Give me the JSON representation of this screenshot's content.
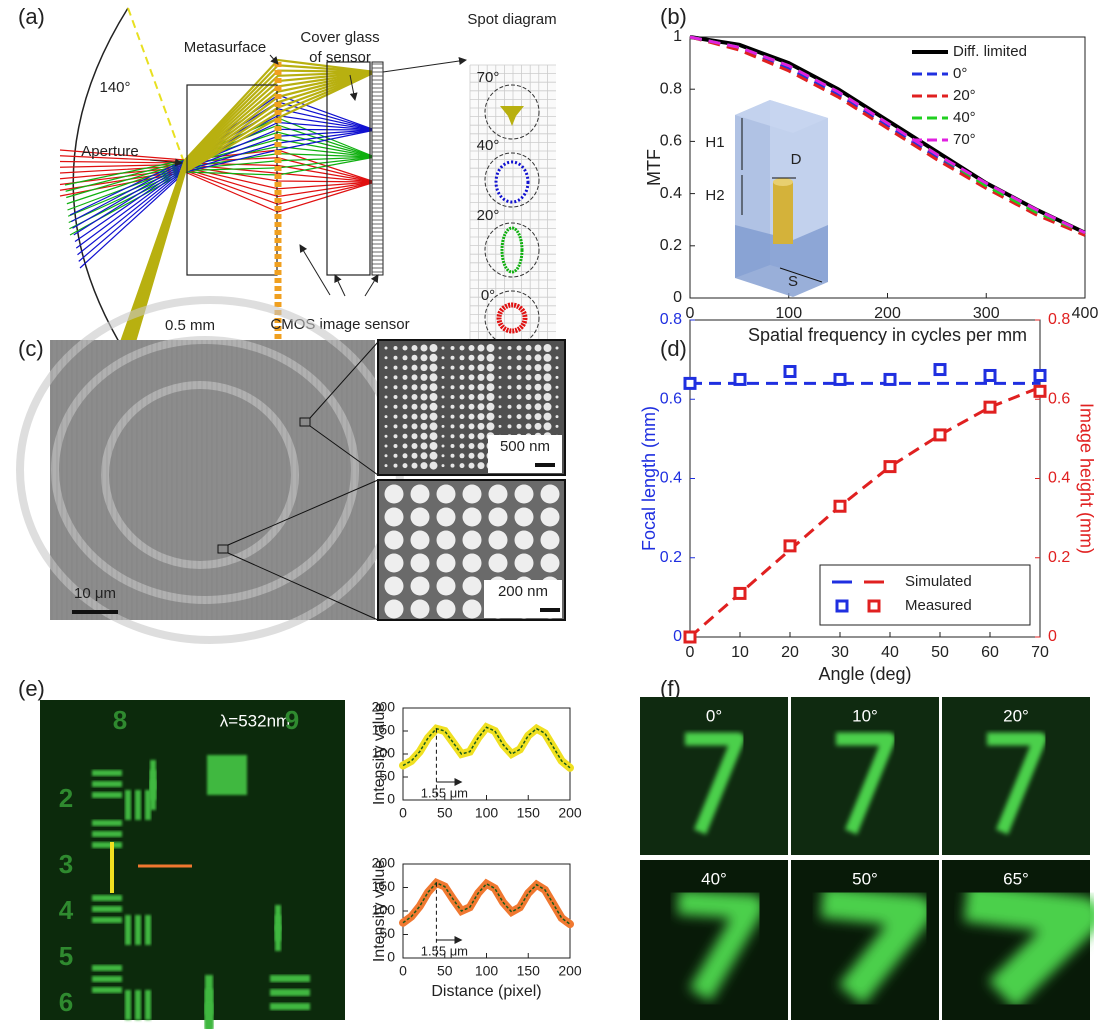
{
  "panels": [
    "(a)",
    "(b)",
    "(c)",
    "(d)",
    "(e)",
    "(f)"
  ],
  "panel_a": {
    "spot_title": "Spot diagram",
    "metasurface": "Metasurface",
    "cover_glass": [
      "Cover glass",
      "of sensor"
    ],
    "angle": "140°",
    "aperture": "Aperture",
    "spot_angles": [
      "70°",
      "40°",
      "20°",
      "0°"
    ],
    "scale_bar": "0.5 mm",
    "sensor": "CMOS image sensor"
  },
  "panel_c": {
    "scale_bars": [
      "10 μm",
      "500 nm",
      "200 nm"
    ]
  },
  "panel_e": {
    "wavelength": "λ=532nm",
    "target_digits": [
      "8",
      "9",
      "2",
      "3",
      "4",
      "5",
      "6"
    ]
  },
  "panel_f": {
    "angles": [
      "0°",
      "10°",
      "20°",
      "40°",
      "50°",
      "65°"
    ]
  },
  "chart_data": [
    {
      "type": "line",
      "xlabel": "Spatial frequency in cycles per mm",
      "ylabel": "MTF",
      "x": [
        0,
        50,
        100,
        150,
        200,
        250,
        300,
        350,
        400
      ],
      "series": [
        {
          "name": "Diff. limited",
          "color": "#000000",
          "style": "solid",
          "values": [
            1,
            0.97,
            0.9,
            0.8,
            0.68,
            0.56,
            0.44,
            0.34,
            0.25
          ]
        },
        {
          "name": "0°",
          "color": "#2030e0",
          "style": "dashed",
          "values": [
            1,
            0.96,
            0.88,
            0.78,
            0.66,
            0.54,
            0.43,
            0.33,
            0.25
          ]
        },
        {
          "name": "20°",
          "color": "#e02020",
          "style": "dashed",
          "values": [
            1,
            0.95,
            0.87,
            0.77,
            0.65,
            0.53,
            0.42,
            0.32,
            0.24
          ]
        },
        {
          "name": "40°",
          "color": "#20d020",
          "style": "dashed",
          "values": [
            1,
            0.96,
            0.89,
            0.79,
            0.67,
            0.55,
            0.43,
            0.33,
            0.25
          ]
        },
        {
          "name": "70°",
          "color": "#e020e0",
          "style": "dashed",
          "values": [
            1,
            0.96,
            0.89,
            0.79,
            0.67,
            0.55,
            0.44,
            0.34,
            0.25
          ]
        }
      ],
      "xlim": [
        0,
        400
      ],
      "ylim": [
        0,
        1
      ],
      "xticks": [
        0,
        100,
        200,
        300,
        400
      ],
      "yticks": [
        0,
        0.2,
        0.4,
        0.6,
        0.8,
        1
      ],
      "legend": "upper right",
      "inset_labels": [
        "H1",
        "H2",
        "D",
        "S"
      ]
    },
    {
      "type": "line",
      "xlabel": "Angle (deg)",
      "ylabel": "Focal length (mm)",
      "y2label": "Image height (mm)",
      "x": [
        0,
        10,
        20,
        30,
        40,
        50,
        60,
        70
      ],
      "series": [
        {
          "name": "Simulated",
          "color": "#1f2fe0",
          "style": "dashed",
          "axis": "y",
          "values": [
            0.64,
            0.64,
            0.64,
            0.64,
            0.64,
            0.64,
            0.64,
            0.64
          ]
        },
        {
          "name": "Measured",
          "color": "#1f2fe0",
          "marker": "square",
          "axis": "y",
          "values": [
            0.64,
            0.65,
            0.67,
            0.65,
            0.65,
            0.675,
            0.66,
            0.66
          ]
        },
        {
          "color": "#e02020",
          "style": "dashed",
          "axis": "y2",
          "values": [
            0,
            0.11,
            0.22,
            0.33,
            0.43,
            0.51,
            0.58,
            0.63
          ]
        },
        {
          "color": "#e02020",
          "marker": "square",
          "axis": "y2",
          "values": [
            0,
            0.11,
            0.23,
            0.33,
            0.43,
            0.51,
            0.58,
            0.62
          ]
        }
      ],
      "xlim": [
        0,
        70
      ],
      "ylim": [
        0,
        0.8
      ],
      "y2lim": [
        0,
        0.8
      ],
      "xticks": [
        0,
        10,
        20,
        30,
        40,
        50,
        60,
        70
      ],
      "yticks": [
        0,
        0.2,
        0.4,
        0.6,
        0.8
      ],
      "y2ticks": [
        0,
        0.2,
        0.4,
        0.6,
        0.8
      ],
      "legend": "lower right"
    },
    {
      "type": "line",
      "ylabel": "Intensity value",
      "annotation": "1.55 μm",
      "color": "#f0e020",
      "fit_color": "#1a5a1a",
      "x": [
        0,
        10,
        20,
        30,
        40,
        50,
        60,
        70,
        80,
        90,
        100,
        110,
        120,
        130,
        140,
        150,
        160,
        170,
        180,
        190,
        200
      ],
      "values": [
        75,
        85,
        105,
        135,
        155,
        150,
        125,
        100,
        105,
        135,
        158,
        150,
        120,
        100,
        110,
        140,
        155,
        145,
        115,
        85,
        70
      ],
      "xlim": [
        0,
        200
      ],
      "ylim": [
        0,
        200
      ],
      "xticks": [
        0,
        50,
        100,
        150,
        200
      ],
      "yticks": [
        0,
        50,
        100,
        150,
        200
      ]
    },
    {
      "type": "line",
      "ylabel": "Intensity value",
      "xlabel": "Distance (pixel)",
      "annotation": "1.55 μm",
      "color": "#f07830",
      "fit_color": "#1a5a1a",
      "x": [
        0,
        10,
        20,
        30,
        40,
        50,
        60,
        70,
        80,
        90,
        100,
        110,
        120,
        130,
        140,
        150,
        160,
        170,
        180,
        190,
        200
      ],
      "values": [
        75,
        88,
        110,
        140,
        160,
        152,
        125,
        100,
        108,
        138,
        158,
        148,
        118,
        98,
        108,
        138,
        156,
        145,
        115,
        85,
        72
      ],
      "xlim": [
        0,
        200
      ],
      "ylim": [
        0,
        200
      ],
      "xticks": [
        0,
        50,
        100,
        150,
        200
      ],
      "yticks": [
        0,
        50,
        100,
        150,
        200
      ]
    }
  ]
}
